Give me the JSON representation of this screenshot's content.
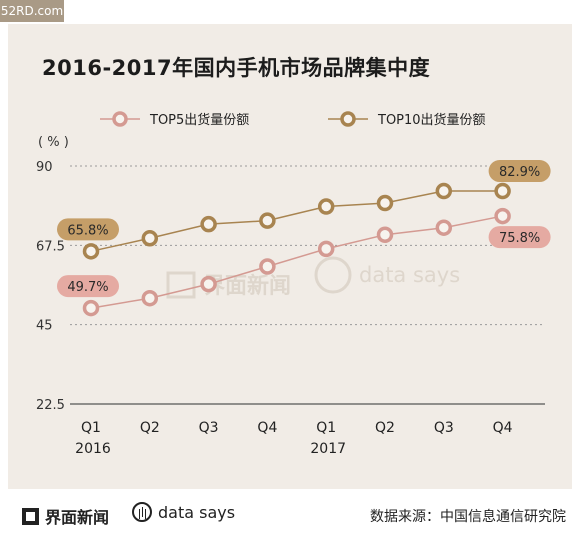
{
  "watermark_tag": "52RD.com",
  "chart_data": {
    "type": "line",
    "title": "2016-2017年国内手机市场品牌集中度",
    "unit_label": "( % )",
    "ylim": [
      22.5,
      90
    ],
    "yticks": [
      "90",
      "67.5",
      "45",
      "22.5"
    ],
    "categories": [
      "Q1",
      "Q2",
      "Q3",
      "Q4",
      "Q1",
      "Q2",
      "Q3",
      "Q4"
    ],
    "year_labels": [
      {
        "index": 0,
        "label": "2016"
      },
      {
        "index": 4,
        "label": "2017"
      }
    ],
    "series": [
      {
        "name": "TOP5出货量份额",
        "color": "#d49a92",
        "label_bg": "#e5aaa2",
        "values": [
          49.7,
          52.5,
          56.5,
          61.5,
          66.5,
          70.5,
          72.5,
          75.8
        ],
        "labels": [
          {
            "index": 0,
            "text": "49.7%"
          },
          {
            "index": 7,
            "text": "75.8%"
          }
        ]
      },
      {
        "name": "TOP10出货量份额",
        "color": "#a88450",
        "label_bg": "#c59e68",
        "values": [
          65.8,
          69.5,
          73.5,
          74.5,
          78.5,
          79.5,
          82.9,
          82.9
        ],
        "labels": [
          {
            "index": 0,
            "text": "65.8%"
          },
          {
            "index": 7,
            "text": "82.9%"
          }
        ]
      }
    ],
    "grid": true,
    "legend_position": "top"
  },
  "watermark": {
    "brand": "界面新闻",
    "data_says": "data says"
  },
  "footer": {
    "brand": "界面新闻",
    "data_says": "data says",
    "source": "数据来源：中国信息通信研究院"
  }
}
